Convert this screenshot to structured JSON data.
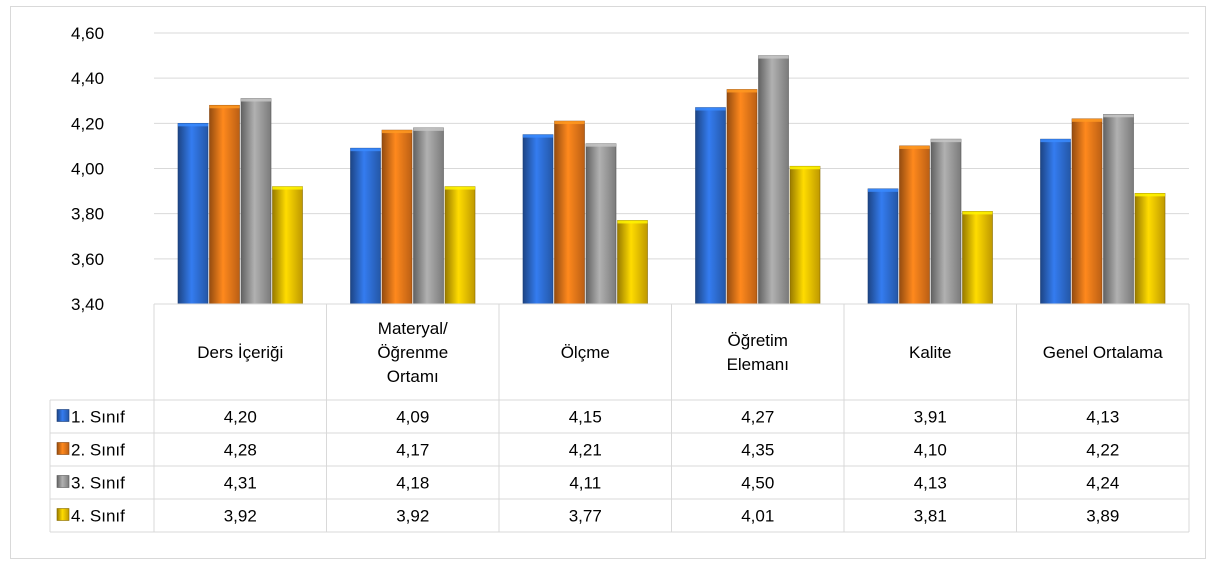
{
  "chart_data": {
    "type": "bar",
    "categories": [
      [
        "Ders İçeriği"
      ],
      [
        "Materyal/",
        "Öğrenme",
        "Ortamı"
      ],
      [
        "Ölçme"
      ],
      [
        "Öğretim",
        "Elemanı"
      ],
      [
        "Kalite"
      ],
      [
        "Genel Ortalama"
      ]
    ],
    "series": [
      {
        "name": "1. Sınıf",
        "color": "#2e6fd6",
        "values": [
          4.2,
          4.09,
          4.15,
          4.27,
          3.91,
          4.13
        ],
        "labels": [
          "4,20",
          "4,09",
          "4,15",
          "4,27",
          "3,91",
          "4,13"
        ]
      },
      {
        "name": "2. Sınıf",
        "color": "#f07a1a",
        "values": [
          4.28,
          4.17,
          4.21,
          4.35,
          4.1,
          4.22
        ],
        "labels": [
          "4,28",
          "4,17",
          "4,21",
          "4,35",
          "4,10",
          "4,22"
        ]
      },
      {
        "name": "3. Sınıf",
        "color": "#9e9e9e",
        "values": [
          4.31,
          4.18,
          4.11,
          4.5,
          4.13,
          4.24
        ],
        "labels": [
          "4,31",
          "4,18",
          "4,11",
          "4,50",
          "4,13",
          "4,24"
        ]
      },
      {
        "name": "4. Sınıf",
        "color": "#f5c400",
        "values": [
          3.92,
          3.92,
          3.77,
          4.01,
          3.81,
          3.89
        ],
        "labels": [
          "3,92",
          "3,92",
          "3,77",
          "4,01",
          "3,81",
          "3,89"
        ]
      }
    ],
    "ylim": [
      3.4,
      4.6
    ],
    "yticks": [
      3.4,
      3.6,
      3.8,
      4.0,
      4.2,
      4.4,
      4.6
    ],
    "ytick_labels": [
      "3,40",
      "3,60",
      "3,80",
      "4,00",
      "4,20",
      "4,40",
      "4,60"
    ],
    "grid": true,
    "data_table": true,
    "title": "",
    "xlabel": "",
    "ylabel": ""
  }
}
